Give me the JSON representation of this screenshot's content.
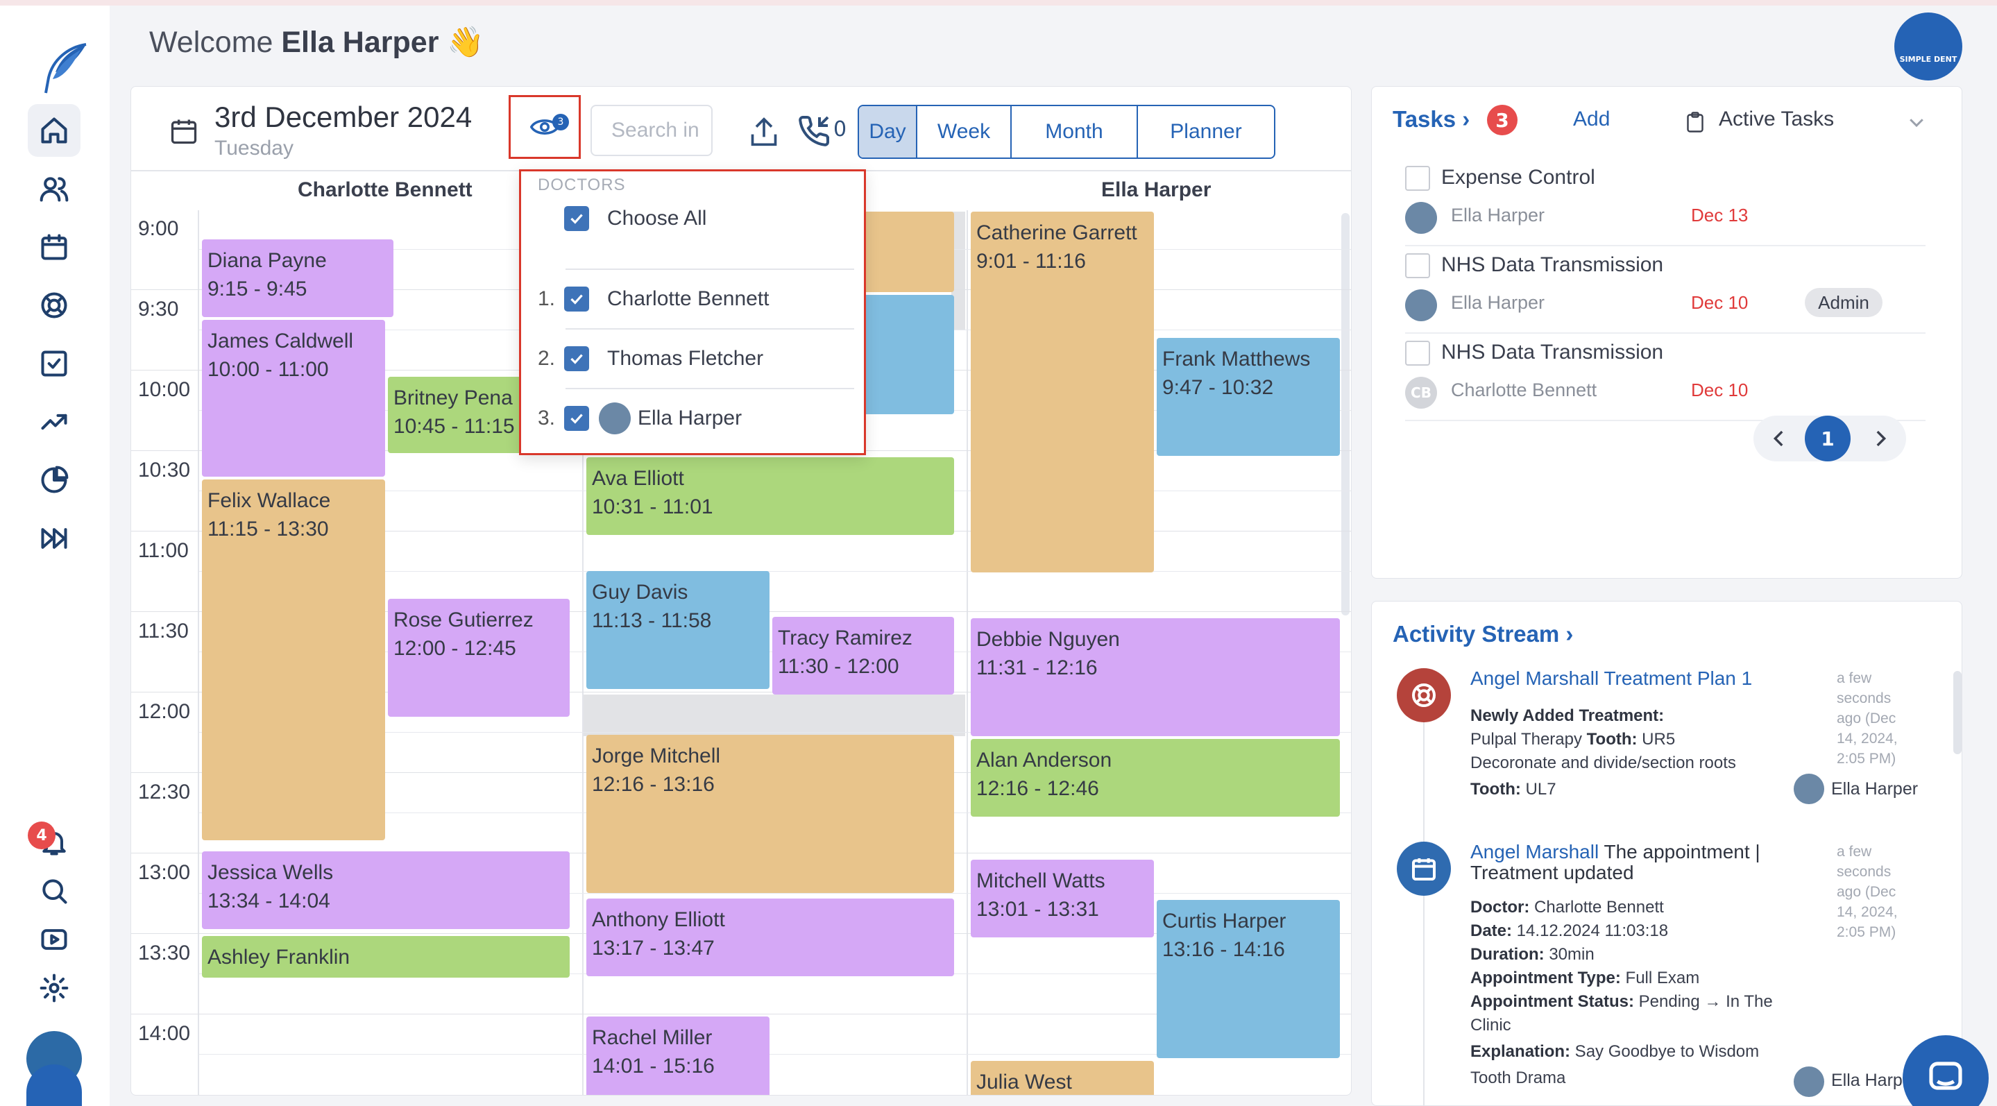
{
  "header": {
    "welcome_prefix": "Welcome ",
    "welcome_name": "Ella Harper",
    "wave": "👋",
    "brand_label": "SIMPLE DENT"
  },
  "sidebar": {
    "items": [
      {
        "icon": "home-icon",
        "active": true
      },
      {
        "icon": "users-icon"
      },
      {
        "icon": "calendar-icon"
      },
      {
        "icon": "lifebuoy-icon"
      },
      {
        "icon": "checkbox-icon"
      },
      {
        "icon": "trend-icon"
      },
      {
        "icon": "pie-chart-icon"
      },
      {
        "icon": "fast-forward-icon"
      }
    ],
    "notifications_count": "4",
    "bottom_icons": [
      "bell-icon",
      "search-icon",
      "video-icon",
      "gear-icon"
    ]
  },
  "calendar": {
    "date": "3rd December 2024",
    "weekday": "Tuesday",
    "doctor_filter_count": "3",
    "search_placeholder": "Search in",
    "calls_count": "0",
    "views": [
      "Day",
      "Week",
      "Month",
      "Planner"
    ],
    "active_view": "Day",
    "columns": [
      {
        "doctor": "Charlotte Bennett"
      },
      {
        "doctor": "Thomas Fletcher"
      },
      {
        "doctor": "Ella Harper"
      }
    ],
    "times": [
      "9:00",
      "9:30",
      "10:00",
      "10:30",
      "11:00",
      "11:30",
      "12:00",
      "12:30",
      "13:00",
      "13:30",
      "14:00"
    ],
    "appointments": [
      {
        "name": "Diana Payne",
        "time": "9:15 - 9:45",
        "color": "purple",
        "doctor": "Charlotte Bennett"
      },
      {
        "name": "James Caldwell",
        "time": "10:00 - 11:00",
        "color": "purple",
        "doctor": "Charlotte Bennett"
      },
      {
        "name": "Britney Pena",
        "time": "10:45 - 11:15",
        "color": "green",
        "doctor": "Charlotte Bennett"
      },
      {
        "name": "Felix Wallace",
        "time": "11:15 - 13:30",
        "color": "orange",
        "doctor": "Charlotte Bennett"
      },
      {
        "name": "Rose Gutierrez",
        "time": "12:00 - 12:45",
        "color": "purple",
        "doctor": "Charlotte Bennett"
      },
      {
        "name": "Jessica Wells",
        "time": "13:34 - 14:04",
        "color": "purple",
        "doctor": "Charlotte Bennett"
      },
      {
        "name": "Ashley Franklin",
        "time": "",
        "color": "green",
        "doctor": "Charlotte Bennett"
      },
      {
        "name": "Ava Elliott",
        "time": "10:31 - 11:01",
        "color": "green",
        "doctor": "Thomas Fletcher"
      },
      {
        "name": "Guy Davis",
        "time": "11:13 - 11:58",
        "color": "blue",
        "doctor": "Thomas Fletcher"
      },
      {
        "name": "Tracy Ramirez",
        "time": "11:30 - 12:00",
        "color": "purple",
        "doctor": "Thomas Fletcher"
      },
      {
        "name": "Jorge Mitchell",
        "time": "12:16 - 13:16",
        "color": "orange",
        "doctor": "Thomas Fletcher"
      },
      {
        "name": "Anthony Elliott",
        "time": "13:17 - 13:47",
        "color": "purple",
        "doctor": "Thomas Fletcher"
      },
      {
        "name": "Rachel Miller",
        "time": "14:01 - 15:16",
        "color": "purple",
        "doctor": "Thomas Fletcher"
      },
      {
        "name": "Catherine Garrett",
        "time": "9:01 - 11:16",
        "color": "orange",
        "doctor": "Ella Harper"
      },
      {
        "name": "Frank Matthews",
        "time": "9:47 - 10:32",
        "color": "blue",
        "doctor": "Ella Harper"
      },
      {
        "name": "Debbie Nguyen",
        "time": "11:31 - 12:16",
        "color": "purple",
        "doctor": "Ella Harper"
      },
      {
        "name": "Alan Anderson",
        "time": "12:16 - 12:46",
        "color": "green",
        "doctor": "Ella Harper"
      },
      {
        "name": "Mitchell Watts",
        "time": "13:01 - 13:31",
        "color": "purple",
        "doctor": "Ella Harper"
      },
      {
        "name": "Curtis Harper",
        "time": "13:16 - 14:16",
        "color": "blue",
        "doctor": "Ella Harper"
      },
      {
        "name": "Julia West",
        "time": "",
        "color": "orange",
        "doctor": "Ella Harper"
      }
    ],
    "colors": {
      "purple": "#d5a8f6",
      "green": "#acd77c",
      "orange": "#e8c48b",
      "blue": "#80bde0"
    }
  },
  "doctors_dropdown": {
    "title": "DOCTORS",
    "choose_all": "Choose All",
    "items": [
      {
        "num": "1.",
        "name": "Charlotte Bennett",
        "checked": true
      },
      {
        "num": "2.",
        "name": "Thomas Fletcher",
        "checked": true
      },
      {
        "num": "3.",
        "name": "Ella Harper",
        "checked": true
      }
    ]
  },
  "tasks": {
    "title": "Tasks",
    "count": "3",
    "add_label": "Add",
    "filter_label": "Active Tasks",
    "items": [
      {
        "title": "Expense Control",
        "user": "Ella Harper",
        "date": "Dec 13",
        "tag": ""
      },
      {
        "title": "NHS Data Transmission",
        "user": "Ella Harper",
        "date": "Dec 10",
        "tag": "Admin"
      },
      {
        "title": "NHS Data Transmission",
        "user": "Charlotte Bennett",
        "user_initials": "CB",
        "date": "Dec 10",
        "tag": ""
      }
    ],
    "current_page": "1"
  },
  "activity": {
    "title": "Activity Stream",
    "entries": [
      {
        "icon": "lifebuoy-icon",
        "color": "#b5433b",
        "head_link": "Angel Marshall Treatment Plan 1",
        "head_rest": "",
        "time_lines": [
          "a few",
          "seconds",
          "ago (Dec",
          "14, 2024,",
          "2:05 PM)"
        ],
        "line1_label": "Newly Added Treatment:",
        "line2_a": "Pulpal Therapy ",
        "line2_label": "Tooth:",
        "line2_b": " UR5",
        "line3": "Decoronate and divide/section roots",
        "line4_label": "Tooth:",
        "line4_value": " UL7",
        "user": "Ella Harper"
      },
      {
        "icon": "calendar-icon",
        "color": "#2f6bb0",
        "head_link": "Angel Marshall",
        "head_rest": " The appointment |",
        "head_rest2": "Treatment updated",
        "time_lines": [
          "a few",
          "seconds",
          "ago (Dec",
          "14, 2024,",
          "2:05 PM)"
        ],
        "fields": [
          {
            "label": "Doctor:",
            "value": " Charlotte Bennett"
          },
          {
            "label": "Date:",
            "value": " 14.12.2024 11:03:18"
          },
          {
            "label": "Duration:",
            "value": " 30min"
          },
          {
            "label": "Appointment Type:",
            "value": " Full Exam"
          },
          {
            "label": "Appointment Status:",
            "value": " Pending → In The"
          },
          {
            "label": "",
            "value": "Clinic"
          },
          {
            "label": "Explanation:",
            "value": " Say Goodbye to Wisdom"
          },
          {
            "label": "",
            "value": "Tooth Drama"
          }
        ],
        "user": "Ella Harp"
      }
    ]
  }
}
